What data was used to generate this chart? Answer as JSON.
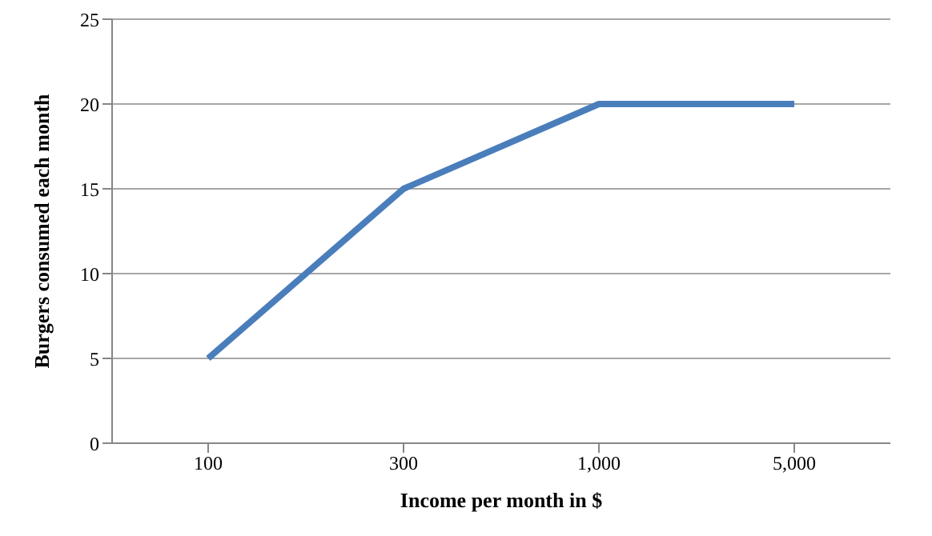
{
  "chart_data": {
    "type": "line",
    "xlabel": "Income per month in $",
    "ylabel": "Burgers consumed each month",
    "categories": [
      "100",
      "300",
      "1,000",
      "5,000"
    ],
    "series": [
      {
        "color": "#4a7ebb",
        "values": [
          5,
          15,
          20,
          20
        ]
      }
    ],
    "ylim": [
      0,
      25
    ],
    "yticks": [
      0,
      5,
      10,
      15,
      20,
      25
    ],
    "grid": "y",
    "marker": "none",
    "line_style": "solid"
  }
}
